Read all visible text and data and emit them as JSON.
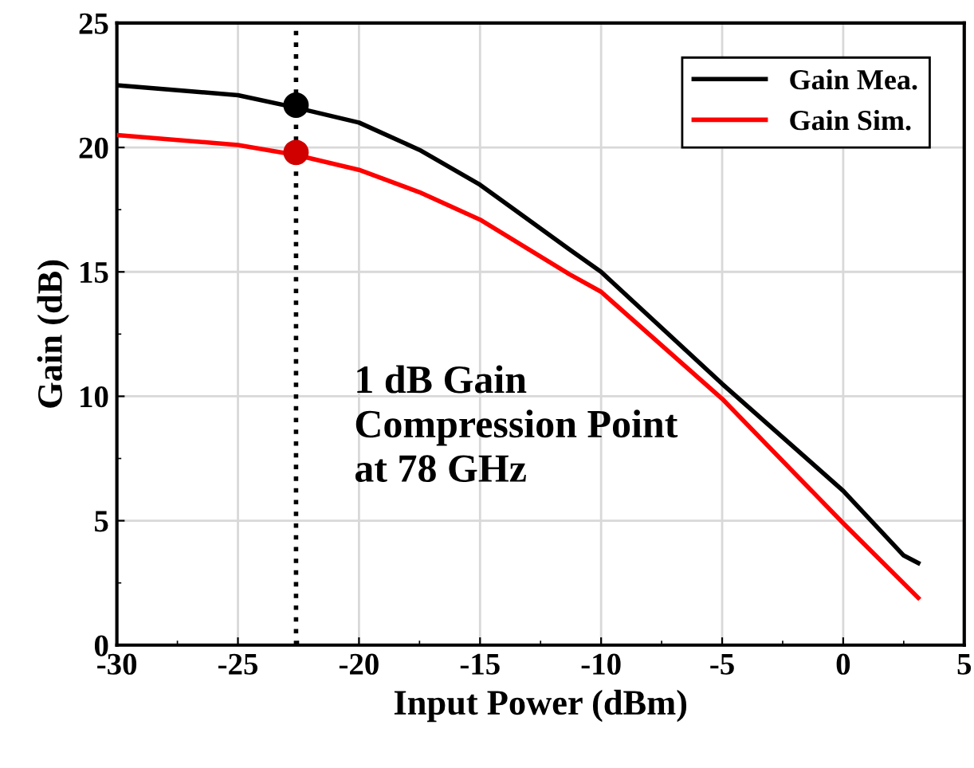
{
  "chart_data": {
    "type": "line",
    "xlabel": "Input Power (dBm)",
    "ylabel": "Gain (dB)",
    "xlim": [
      -30,
      5
    ],
    "ylim": [
      0,
      25
    ],
    "xticks": [
      -30,
      -25,
      -20,
      -15,
      -10,
      -5,
      0,
      5
    ],
    "yticks": [
      0,
      5,
      10,
      15,
      20,
      25
    ],
    "grid": true,
    "legend": "top right",
    "series": [
      {
        "name": "Gain Mea.",
        "color": "#000000",
        "x": [
          -30,
          -27.5,
          -25,
          -22.6,
          -20,
          -17.5,
          -15,
          -11.3,
          -10,
          -5,
          0,
          2.5,
          3.1
        ],
        "values": [
          22.5,
          22.3,
          22.1,
          21.6,
          21.0,
          19.9,
          18.5,
          15.9,
          15.0,
          10.5,
          6.2,
          3.6,
          3.3
        ]
      },
      {
        "name": "Gain Sim.",
        "color": "#ff0000",
        "x": [
          -30,
          -25,
          -22.6,
          -20,
          -17.5,
          -15,
          -11.3,
          -10,
          -5,
          0,
          3.1
        ],
        "values": [
          20.5,
          20.1,
          19.7,
          19.1,
          18.2,
          17.1,
          14.9,
          14.2,
          9.9,
          4.9,
          1.9
        ]
      },
      {
        "type": "scatter",
        "marker": "circle",
        "x": [
          -22.6,
          -22.6
        ],
        "values": [
          21.7,
          19.8
        ],
        "colors": [
          "#000000",
          "#d00000"
        ]
      }
    ],
    "ref_lines": [
      {
        "axis": "x",
        "value": -22.6,
        "color": "#000000",
        "line_style": "dotted"
      }
    ],
    "annotations": [
      "1 dB Gain\nCompression Point\nat 78 GHz"
    ]
  }
}
